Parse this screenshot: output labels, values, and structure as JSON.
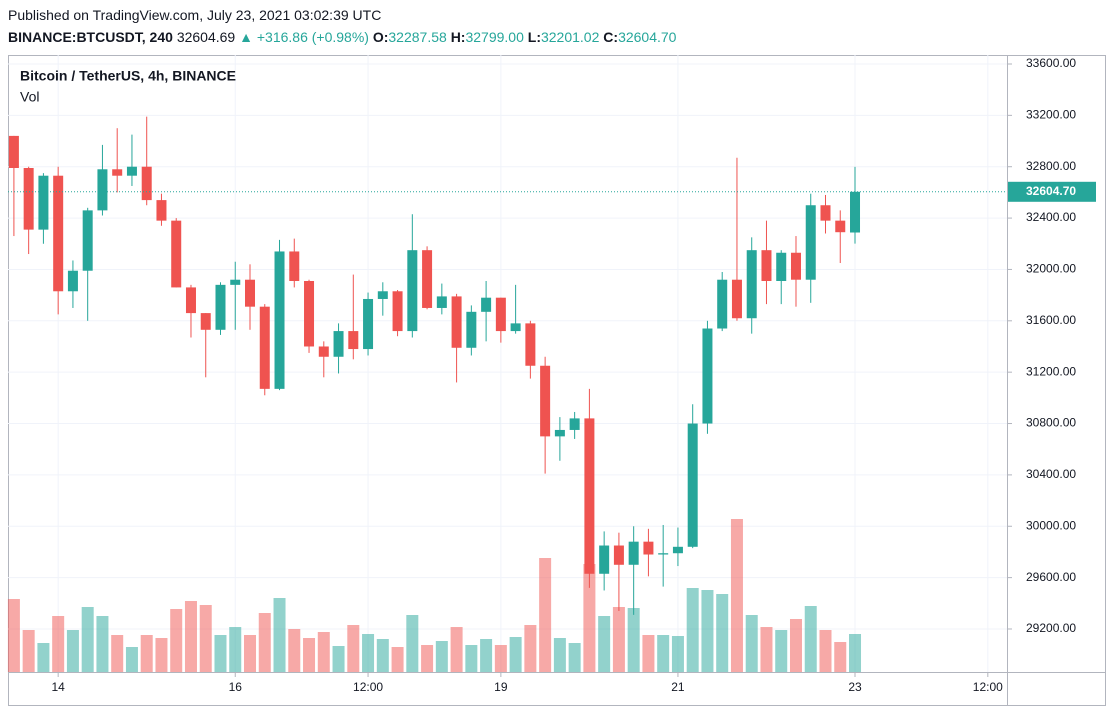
{
  "header": {
    "published": "Published on TradingView.com, July 23, 2021 03:02:39 UTC",
    "symbol": "BINANCE:BTCUSDT, 240",
    "last": "32604.69",
    "change": "▲ +316.86 (+0.98%)",
    "o_label": "O:",
    "o": "32287.58",
    "h_label": "H:",
    "h": "32799.00",
    "l_label": "L:",
    "l": "32201.02",
    "c_label": "C:",
    "c": "32604.70"
  },
  "chart_data": {
    "type": "candlestick",
    "title": "Bitcoin / TetherUS, 4h, BINANCE",
    "volume_label": "Vol",
    "up_color": "#26a69a",
    "down_color": "#ef5350",
    "grid": true,
    "last_price_label": "32604.70",
    "x": [
      0,
      1,
      2,
      3,
      4,
      5,
      6,
      7,
      8,
      9,
      10,
      11,
      12,
      13,
      14,
      15,
      16,
      17,
      18,
      19,
      20,
      21,
      22,
      23,
      24,
      25,
      26,
      27,
      28,
      29,
      30,
      31,
      32,
      33,
      34,
      35,
      36,
      37,
      38,
      39,
      40,
      41,
      42,
      43,
      44,
      45,
      46,
      47,
      48,
      49,
      50,
      51,
      52,
      53,
      54,
      55,
      56,
      57
    ],
    "open": [
      33040,
      32790,
      32310,
      32730,
      31830,
      31990,
      32460,
      32780,
      32730,
      32800,
      32540,
      32380,
      31860,
      31660,
      31530,
      31880,
      31920,
      31710,
      31070,
      32140,
      31910,
      31400,
      31320,
      31520,
      31380,
      31770,
      31830,
      31520,
      32150,
      31700,
      31790,
      31390,
      31670,
      31780,
      31520,
      31580,
      31250,
      30700,
      30750,
      30840,
      29630,
      29850,
      29700,
      29880,
      29780,
      29790,
      29840,
      30800,
      31540,
      31920,
      31620,
      32150,
      31910,
      32130,
      31920,
      32500,
      32380,
      32287.58
    ],
    "high": [
      33040,
      32800,
      32750,
      32800,
      32070,
      32480,
      32970,
      33100,
      33050,
      33190,
      32590,
      32400,
      31880,
      31660,
      31900,
      32060,
      32040,
      31730,
      32230,
      32240,
      31920,
      31440,
      31580,
      31960,
      31820,
      31900,
      31840,
      32430,
      32180,
      31890,
      31810,
      31720,
      31910,
      31780,
      31880,
      31600,
      31320,
      30850,
      30890,
      31070,
      29960,
      29950,
      30000,
      29980,
      30010,
      29990,
      30950,
      31600,
      31980,
      32870,
      32250,
      32380,
      32150,
      32260,
      32590,
      32580,
      32460,
      32799
    ],
    "low": [
      32260,
      32120,
      32200,
      31650,
      31700,
      31600,
      32420,
      32600,
      32650,
      32500,
      32340,
      31860,
      31470,
      31160,
      31490,
      31530,
      31530,
      31020,
      31060,
      31860,
      31350,
      31160,
      31190,
      31300,
      31330,
      31640,
      31480,
      31470,
      31690,
      31650,
      31120,
      31330,
      31440,
      31430,
      31500,
      31150,
      30410,
      30510,
      30680,
      29520,
      29500,
      29340,
      29310,
      29610,
      29530,
      29690,
      29830,
      30720,
      31520,
      31600,
      31500,
      31730,
      31730,
      31710,
      31740,
      32280,
      32050,
      32201.02
    ],
    "close": [
      32790,
      32310,
      32730,
      31830,
      31990,
      32460,
      32780,
      32730,
      32800,
      32540,
      32380,
      31860,
      31660,
      31530,
      31880,
      31920,
      31710,
      31070,
      32140,
      31910,
      31400,
      31320,
      31520,
      31380,
      31770,
      31830,
      31520,
      32150,
      31700,
      31790,
      31390,
      31670,
      31780,
      31520,
      31580,
      31250,
      30700,
      30750,
      30840,
      29630,
      29850,
      29700,
      29880,
      29780,
      29790,
      29840,
      30800,
      31540,
      31920,
      31620,
      32150,
      31910,
      32130,
      31920,
      32500,
      32380,
      32290,
      32604.7
    ],
    "volume": [
      73,
      42,
      29,
      56,
      42,
      65,
      56,
      37,
      25,
      37,
      34,
      63,
      71,
      67,
      37,
      45,
      37,
      59,
      74,
      43,
      34,
      40,
      26,
      47,
      38,
      33,
      25,
      57,
      27,
      31,
      45,
      27,
      33,
      27,
      35,
      47,
      114,
      34,
      29,
      108,
      56,
      65,
      64,
      37,
      37,
      36,
      84,
      82,
      78,
      153,
      57,
      45,
      42,
      53,
      66,
      42,
      30,
      38
    ],
    "xlim": [
      -0.4,
      67.3
    ],
    "xticks": [
      {
        "value": 3,
        "label": "14"
      },
      {
        "value": 15,
        "label": "16"
      },
      {
        "value": 24,
        "label": "12:00"
      },
      {
        "value": 33,
        "label": "19"
      },
      {
        "value": 45,
        "label": "21"
      },
      {
        "value": 57,
        "label": "23"
      },
      {
        "value": 66,
        "label": "12:00"
      }
    ],
    "ylim": [
      28865,
      33670
    ],
    "yticks": [
      {
        "value": 29200,
        "label": "29200.00"
      },
      {
        "value": 29600,
        "label": "29600.00"
      },
      {
        "value": 30000,
        "label": "30000.00"
      },
      {
        "value": 30400,
        "label": "30400.00"
      },
      {
        "value": 30800,
        "label": "30800.00"
      },
      {
        "value": 31200,
        "label": "31200.00"
      },
      {
        "value": 31600,
        "label": "31600.00"
      },
      {
        "value": 32000,
        "label": "32000.00"
      },
      {
        "value": 32400,
        "label": "32400.00"
      },
      {
        "value": 32800,
        "label": "32800.00"
      },
      {
        "value": 33200,
        "label": "33200.00"
      },
      {
        "value": 33600,
        "label": "33600.00"
      }
    ]
  }
}
